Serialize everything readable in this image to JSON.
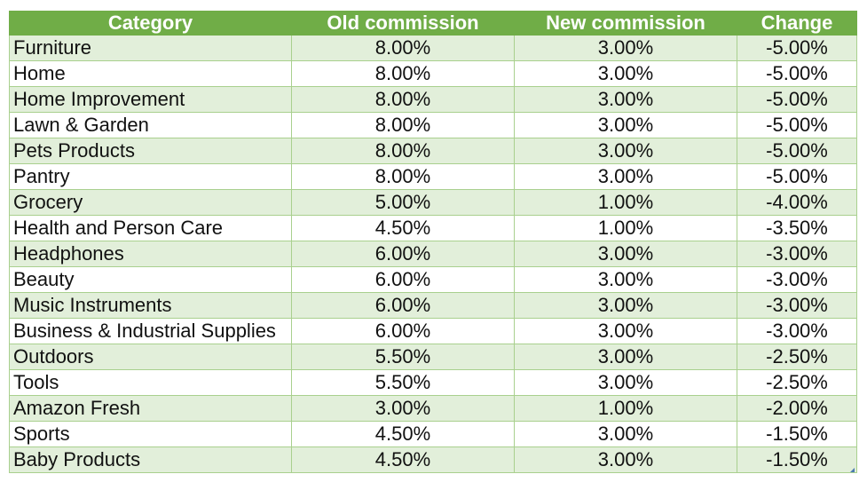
{
  "table": {
    "headers": {
      "category": "Category",
      "old": "Old commission",
      "new": "New commission",
      "change": "Change"
    },
    "rows": [
      {
        "category": "Furniture",
        "old": "8.00%",
        "new": "3.00%",
        "change": "-5.00%"
      },
      {
        "category": "Home",
        "old": "8.00%",
        "new": "3.00%",
        "change": "-5.00%"
      },
      {
        "category": "Home Improvement",
        "old": "8.00%",
        "new": "3.00%",
        "change": "-5.00%"
      },
      {
        "category": "Lawn & Garden",
        "old": "8.00%",
        "new": "3.00%",
        "change": "-5.00%"
      },
      {
        "category": "Pets Products",
        "old": "8.00%",
        "new": "3.00%",
        "change": "-5.00%"
      },
      {
        "category": "Pantry",
        "old": "8.00%",
        "new": "3.00%",
        "change": "-5.00%"
      },
      {
        "category": "Grocery",
        "old": "5.00%",
        "new": "1.00%",
        "change": "-4.00%"
      },
      {
        "category": "Health and Person Care",
        "old": "4.50%",
        "new": "1.00%",
        "change": "-3.50%"
      },
      {
        "category": "Headphones",
        "old": "6.00%",
        "new": "3.00%",
        "change": "-3.00%"
      },
      {
        "category": "Beauty",
        "old": "6.00%",
        "new": "3.00%",
        "change": "-3.00%"
      },
      {
        "category": "Music Instruments",
        "old": "6.00%",
        "new": "3.00%",
        "change": "-3.00%"
      },
      {
        "category": "Business & Industrial Supplies",
        "old": "6.00%",
        "new": "3.00%",
        "change": "-3.00%"
      },
      {
        "category": "Outdoors",
        "old": "5.50%",
        "new": "3.00%",
        "change": "-2.50%"
      },
      {
        "category": "Tools",
        "old": "5.50%",
        "new": "3.00%",
        "change": "-2.50%"
      },
      {
        "category": "Amazon Fresh",
        "old": "3.00%",
        "new": "1.00%",
        "change": "-2.00%"
      },
      {
        "category": "Sports",
        "old": "4.50%",
        "new": "3.00%",
        "change": "-1.50%"
      },
      {
        "category": "Baby Products",
        "old": "4.50%",
        "new": "3.00%",
        "change": "-1.50%"
      }
    ]
  },
  "colors": {
    "header_bg": "#70ad47",
    "band_bg": "#e2efda",
    "grid": "#a9d08e"
  }
}
